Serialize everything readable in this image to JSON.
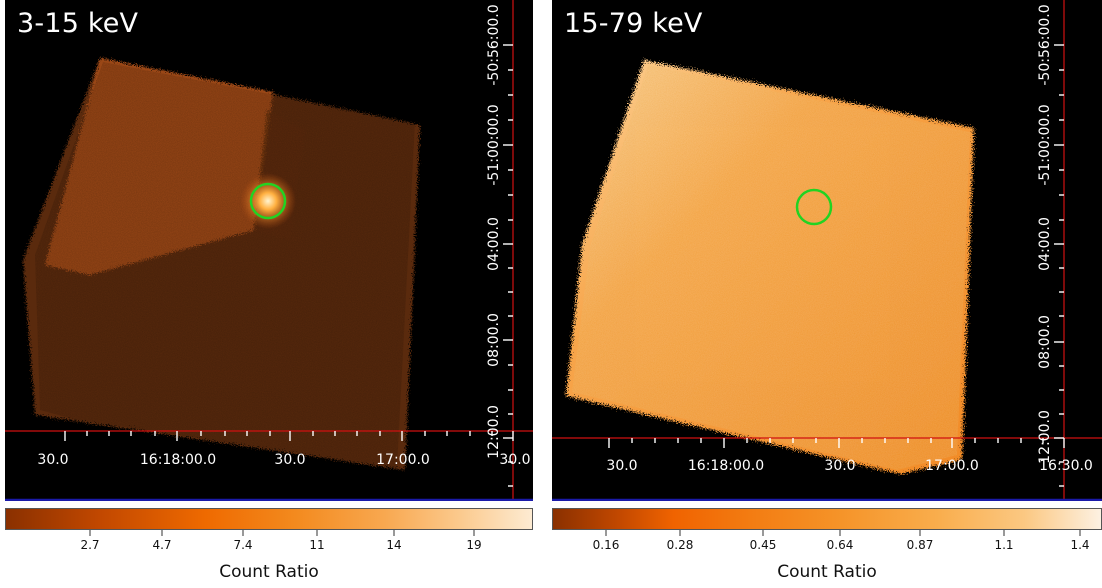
{
  "panels": [
    {
      "id": "left",
      "energy_band": "3-15 keV",
      "ra_ticks": [
        "30.0",
        "16:18:00.0",
        "30.0",
        "17:00.0",
        "30.0"
      ],
      "dec_ticks": [
        "-50:56:00.0",
        "-51:00:00.0",
        "04:00.0",
        "08:00.0",
        "12:00.0"
      ],
      "colorbar": {
        "title": "Count Ratio",
        "labels": [
          "2.7",
          "4.7",
          "7.4",
          "11",
          "14",
          "19"
        ]
      },
      "source_region_color": "#22d322"
    },
    {
      "id": "right",
      "energy_band": "15-79 keV",
      "ra_ticks": [
        "30.0",
        "16:18:00.0",
        "30.0",
        "17:00.0",
        "16:30.0"
      ],
      "dec_ticks": [
        "-50:56:00.0",
        "-51:00:00.0",
        "04:00.0",
        "08:00.0",
        "12:00.0"
      ],
      "colorbar": {
        "title": "Count Ratio",
        "labels": [
          "0.16",
          "0.28",
          "0.45",
          "0.64",
          "0.87",
          "1.1",
          "1.4"
        ]
      },
      "source_region_color": "#22d322"
    }
  ],
  "colors": {
    "background": "#000000",
    "crosshair": "#d01010",
    "bottom_line": "#1a1aa8",
    "heat_low": "#7a2a00",
    "heat_high": "#fff0d8"
  }
}
